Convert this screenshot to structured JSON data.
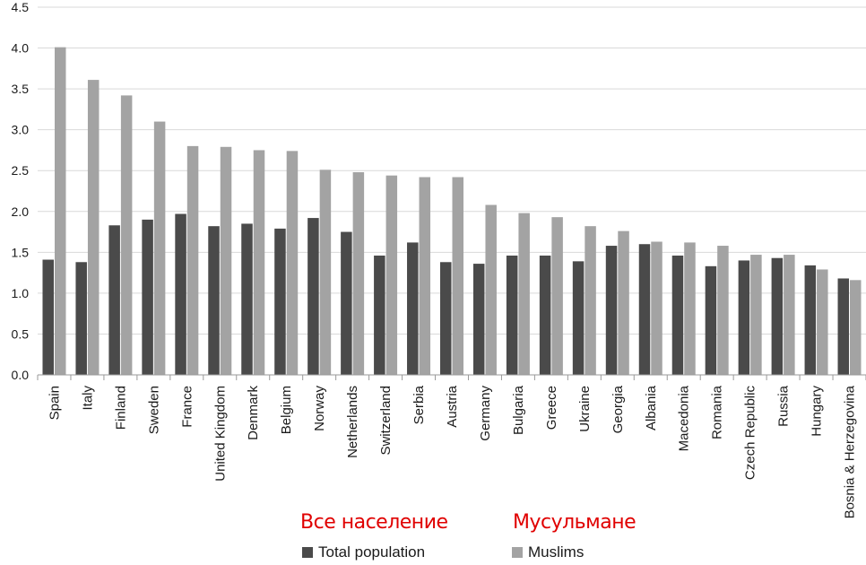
{
  "chart_data": {
    "type": "bar",
    "categories": [
      "Spain",
      "Italy",
      "Finland",
      "Sweden",
      "France",
      "United Kingdom",
      "Denmark",
      "Belgium",
      "Norway",
      "Netherlands",
      "Switzerland",
      "Serbia",
      "Austria",
      "Germany",
      "Bulgaria",
      "Greece",
      "Ukraine",
      "Georgia",
      "Albania",
      "Macedonia",
      "Romania",
      "Czech Republic",
      "Russia",
      "Hungary",
      "Bosnia & Herzegovina"
    ],
    "series": [
      {
        "name": "Total population",
        "color": "#4a4a4a",
        "values": [
          1.41,
          1.38,
          1.83,
          1.9,
          1.97,
          1.82,
          1.85,
          1.79,
          1.92,
          1.75,
          1.46,
          1.62,
          1.38,
          1.36,
          1.46,
          1.46,
          1.39,
          1.58,
          1.6,
          1.46,
          1.33,
          1.4,
          1.43,
          1.34,
          1.18
        ]
      },
      {
        "name": "Muslims",
        "color": "#a3a3a3",
        "values": [
          4.01,
          3.61,
          3.42,
          3.1,
          2.8,
          2.79,
          2.75,
          2.74,
          2.51,
          2.48,
          2.44,
          2.42,
          2.42,
          2.08,
          1.98,
          1.93,
          1.82,
          1.76,
          1.63,
          1.62,
          1.58,
          1.47,
          1.47,
          1.29,
          1.16
        ]
      }
    ],
    "yticks": [
      "0.0",
      "0.5",
      "1.0",
      "1.5",
      "2.0",
      "2.5",
      "3.0",
      "3.5",
      "4.0",
      "4.5"
    ],
    "ylim": [
      0,
      4.5
    ],
    "title": "",
    "xlabel": "",
    "ylabel": "",
    "legend": {
      "position": "bottom",
      "items": [
        "Total population",
        "Muslims"
      ]
    },
    "annotations": [
      "Все население",
      "Мусульмане"
    ],
    "annotation_color": "#e00000"
  }
}
